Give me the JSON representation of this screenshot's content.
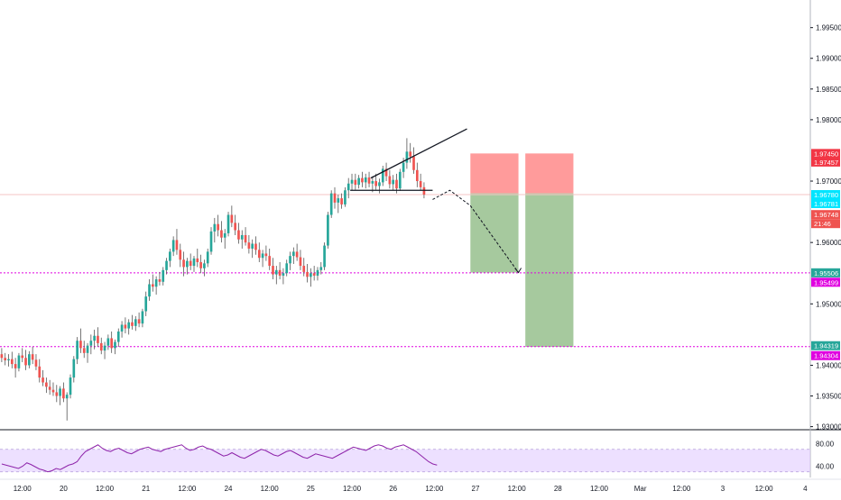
{
  "chart_data": [
    {
      "type": "candlestick",
      "title": "",
      "ylim": [
        1.9295,
        1.9995
      ],
      "y_ticks": [
        "1.99500",
        "1.99000",
        "1.98500",
        "1.98000",
        "1.97000",
        "1.96000",
        "1.95000",
        "1.94000",
        "1.93500",
        "1.93000"
      ],
      "y_tick_values": [
        1.995,
        1.99,
        1.985,
        1.98,
        1.97,
        1.96,
        1.95,
        1.94,
        1.935,
        1.93
      ],
      "x_ticks": [
        "12:00",
        "20",
        "12:00",
        "21",
        "12:00",
        "24",
        "12:00",
        "25",
        "12:00",
        "26",
        "12:00",
        "27",
        "12:00",
        "28",
        "12:00",
        "Mar",
        "12:00",
        "3",
        "12:00",
        "4"
      ],
      "x_tick_indices": [
        6,
        18,
        30,
        42,
        54,
        66,
        78,
        90,
        102,
        114,
        126,
        138,
        150,
        162,
        174,
        186,
        198,
        210,
        222,
        234
      ],
      "bar_count_visible": 236,
      "ohlc": [
        [
          1.9418,
          1.9428,
          1.9405,
          1.9412
        ],
        [
          1.9412,
          1.942,
          1.94,
          1.9408
        ],
        [
          1.9408,
          1.9418,
          1.9398,
          1.941
        ],
        [
          1.941,
          1.9422,
          1.9395,
          1.9402
        ],
        [
          1.9402,
          1.9412,
          1.938,
          1.9395
        ],
        [
          1.9395,
          1.942,
          1.939,
          1.9416
        ],
        [
          1.9416,
          1.9428,
          1.9405,
          1.9412
        ],
        [
          1.9412,
          1.9425,
          1.9392,
          1.94
        ],
        [
          1.94,
          1.9423,
          1.9395,
          1.9418
        ],
        [
          1.9418,
          1.943,
          1.9402,
          1.9409
        ],
        [
          1.9409,
          1.9418,
          1.9392,
          1.9398
        ],
        [
          1.9398,
          1.941,
          1.9372,
          1.938
        ],
        [
          1.938,
          1.9392,
          1.9366,
          1.9372
        ],
        [
          1.9372,
          1.938,
          1.9355,
          1.9365
        ],
        [
          1.9365,
          1.9376,
          1.9352,
          1.936
        ],
        [
          1.936,
          1.9372,
          1.935,
          1.9356
        ],
        [
          1.9356,
          1.9368,
          1.934,
          1.935
        ],
        [
          1.935,
          1.9366,
          1.9335,
          1.9362
        ],
        [
          1.9362,
          1.9372,
          1.934,
          1.9346
        ],
        [
          1.9346,
          1.9356,
          1.931,
          1.9352
        ],
        [
          1.9352,
          1.9385,
          1.9346,
          1.938
        ],
        [
          1.938,
          1.9415,
          1.9372,
          1.941
        ],
        [
          1.941,
          1.9446,
          1.9402,
          1.944
        ],
        [
          1.944,
          1.946,
          1.942,
          1.9428
        ],
        [
          1.9428,
          1.944,
          1.9412,
          1.942
        ],
        [
          1.942,
          1.9436,
          1.9404,
          1.9432
        ],
        [
          1.9432,
          1.945,
          1.9418,
          1.944
        ],
        [
          1.944,
          1.9458,
          1.9426,
          1.9448
        ],
        [
          1.9448,
          1.9462,
          1.943,
          1.9436
        ],
        [
          1.9436,
          1.9445,
          1.9418,
          1.9424
        ],
        [
          1.9424,
          1.9438,
          1.941,
          1.9432
        ],
        [
          1.9432,
          1.945,
          1.9425,
          1.9444
        ],
        [
          1.9444,
          1.9455,
          1.942,
          1.9428
        ],
        [
          1.9428,
          1.9442,
          1.9418,
          1.9438
        ],
        [
          1.9438,
          1.946,
          1.943,
          1.9455
        ],
        [
          1.9455,
          1.9472,
          1.9445,
          1.9466
        ],
        [
          1.9466,
          1.9478,
          1.9452,
          1.946
        ],
        [
          1.946,
          1.9475,
          1.945,
          1.947
        ],
        [
          1.947,
          1.9482,
          1.9458,
          1.9464
        ],
        [
          1.9464,
          1.948,
          1.9456,
          1.9475
        ],
        [
          1.9475,
          1.9486,
          1.9462,
          1.9468
        ],
        [
          1.9468,
          1.9492,
          1.9462,
          1.9488
        ],
        [
          1.9488,
          1.952,
          1.948,
          1.9512
        ],
        [
          1.9512,
          1.954,
          1.9505,
          1.9532
        ],
        [
          1.9532,
          1.9548,
          1.952,
          1.9528
        ],
        [
          1.9528,
          1.9545,
          1.9515,
          1.954
        ],
        [
          1.954,
          1.9552,
          1.953,
          1.9536
        ],
        [
          1.9536,
          1.956,
          1.953,
          1.9555
        ],
        [
          1.9555,
          1.9575,
          1.9548,
          1.957
        ],
        [
          1.957,
          1.959,
          1.956,
          1.9585
        ],
        [
          1.9585,
          1.961,
          1.9578,
          1.9604
        ],
        [
          1.9604,
          1.9622,
          1.958,
          1.9588
        ],
        [
          1.9588,
          1.9598,
          1.956,
          1.9572
        ],
        [
          1.9572,
          1.9585,
          1.9545,
          1.956
        ],
        [
          1.956,
          1.9575,
          1.9548,
          1.957
        ],
        [
          1.957,
          1.9582,
          1.9555,
          1.9562
        ],
        [
          1.9562,
          1.9578,
          1.9552,
          1.9574
        ],
        [
          1.9574,
          1.959,
          1.956,
          1.9568
        ],
        [
          1.9568,
          1.958,
          1.955,
          1.9558
        ],
        [
          1.9558,
          1.9572,
          1.9545,
          1.9566
        ],
        [
          1.9566,
          1.959,
          1.956,
          1.9585
        ],
        [
          1.9585,
          1.9625,
          1.958,
          1.9618
        ],
        [
          1.9618,
          1.964,
          1.96,
          1.963
        ],
        [
          1.963,
          1.9645,
          1.961,
          1.962
        ],
        [
          1.962,
          1.9635,
          1.96,
          1.9608
        ],
        [
          1.9608,
          1.9622,
          1.959,
          1.9615
        ],
        [
          1.9615,
          1.965,
          1.961,
          1.9645
        ],
        [
          1.9645,
          1.966,
          1.9625,
          1.9632
        ],
        [
          1.9632,
          1.9645,
          1.9612,
          1.962
        ],
        [
          1.962,
          1.9632,
          1.9598,
          1.9605
        ],
        [
          1.9605,
          1.962,
          1.959,
          1.9612
        ],
        [
          1.9612,
          1.9625,
          1.9595,
          1.96
        ],
        [
          1.96,
          1.9612,
          1.9582,
          1.959
        ],
        [
          1.959,
          1.9605,
          1.9575,
          1.9598
        ],
        [
          1.9598,
          1.961,
          1.958,
          1.9588
        ],
        [
          1.9588,
          1.96,
          1.9568,
          1.9575
        ],
        [
          1.9575,
          1.9588,
          1.956,
          1.9582
        ],
        [
          1.9582,
          1.9595,
          1.957,
          1.9578
        ],
        [
          1.9578,
          1.959,
          1.9555,
          1.9562
        ],
        [
          1.9562,
          1.9575,
          1.954,
          1.9548
        ],
        [
          1.9548,
          1.9562,
          1.9532,
          1.9555
        ],
        [
          1.9555,
          1.9568,
          1.954,
          1.9546
        ],
        [
          1.9546,
          1.9558,
          1.9532,
          1.955
        ],
        [
          1.955,
          1.9572,
          1.9545,
          1.9566
        ],
        [
          1.9566,
          1.9585,
          1.9555,
          1.9578
        ],
        [
          1.9578,
          1.9592,
          1.9565,
          1.9585
        ],
        [
          1.9585,
          1.9598,
          1.957,
          1.9576
        ],
        [
          1.9576,
          1.9588,
          1.9555,
          1.9562
        ],
        [
          1.9562,
          1.9575,
          1.9545,
          1.9552
        ],
        [
          1.9552,
          1.9565,
          1.9535,
          1.9544
        ],
        [
          1.9544,
          1.9558,
          1.9528,
          1.955
        ],
        [
          1.955,
          1.9562,
          1.9538,
          1.9546
        ],
        [
          1.9546,
          1.956,
          1.9538,
          1.9555
        ],
        [
          1.9555,
          1.9568,
          1.9548,
          1.956
        ],
        [
          1.956,
          1.96,
          1.9555,
          1.9595
        ],
        [
          1.9595,
          1.965,
          1.959,
          1.9645
        ],
        [
          1.9645,
          1.9685,
          1.964,
          1.968
        ],
        [
          1.968,
          1.969,
          1.9655,
          1.9665
        ],
        [
          1.9665,
          1.9678,
          1.9648,
          1.9672
        ],
        [
          1.9672,
          1.968,
          1.9655,
          1.9662
        ],
        [
          1.9662,
          1.969,
          1.9658,
          1.9685
        ],
        [
          1.9685,
          1.9705,
          1.9672,
          1.9696
        ],
        [
          1.9696,
          1.9712,
          1.9685,
          1.9702
        ],
        [
          1.9702,
          1.9712,
          1.9686,
          1.9694
        ],
        [
          1.9694,
          1.971,
          1.9688,
          1.9705
        ],
        [
          1.9705,
          1.9715,
          1.969,
          1.9698
        ],
        [
          1.9698,
          1.9712,
          1.9688,
          1.9706
        ],
        [
          1.9706,
          1.9715,
          1.969,
          1.9696
        ],
        [
          1.9696,
          1.9708,
          1.9682,
          1.97
        ],
        [
          1.97,
          1.9712,
          1.9686,
          1.9692
        ],
        [
          1.9692,
          1.9704,
          1.968,
          1.9698
        ],
        [
          1.9698,
          1.9725,
          1.9692,
          1.972
        ],
        [
          1.972,
          1.973,
          1.97,
          1.9708
        ],
        [
          1.9708,
          1.9718,
          1.9688,
          1.9695
        ],
        [
          1.9695,
          1.971,
          1.9685,
          1.9702
        ],
        [
          1.9702,
          1.9712,
          1.968,
          1.9688
        ],
        [
          1.9688,
          1.972,
          1.9684,
          1.9715
        ],
        [
          1.9715,
          1.9738,
          1.9705,
          1.973
        ],
        [
          1.973,
          1.977,
          1.972,
          1.9748
        ],
        [
          1.9748,
          1.9762,
          1.973,
          1.974
        ],
        [
          1.974,
          1.9755,
          1.9712,
          1.9718
        ],
        [
          1.9718,
          1.973,
          1.969,
          1.97
        ],
        [
          1.97,
          1.9712,
          1.9685,
          1.969
        ],
        [
          1.969,
          1.9698,
          1.9672,
          1.9678
        ]
      ],
      "horizontal_lines": [
        {
          "price": 1.95506,
          "style": "dotted",
          "color": "#e000e0"
        },
        {
          "price": 1.94304,
          "style": "dotted",
          "color": "#e000e0"
        },
        {
          "price": 1.9678,
          "style": "solid",
          "color": "#f5c6c6"
        }
      ],
      "trendlines": [
        {
          "x": [
            108,
            136
          ],
          "y": [
            1.9705,
            1.9785
          ],
          "color": "#131722"
        },
        {
          "x": [
            102,
            126
          ],
          "y": [
            1.9685,
            1.9685
          ],
          "color": "#131722"
        }
      ],
      "projection_path": {
        "x": [
          126,
          131,
          137,
          151
        ],
        "y": [
          1.967,
          1.9685,
          1.966,
          1.9551
        ]
      },
      "positions": [
        {
          "x_range": [
            137,
            151
          ],
          "entry": 1.968,
          "stop": 1.9745,
          "target": 1.9551
        },
        {
          "x_range": [
            153,
            167
          ],
          "entry": 1.968,
          "stop": 1.9745,
          "target": 1.943
        }
      ],
      "price_tags": [
        {
          "text": "1.97450",
          "value": 1.9745,
          "bg": "#f23645"
        },
        {
          "text": "1.97457",
          "value": 1.97457,
          "bg": "#f23645"
        },
        {
          "text": "1.96780",
          "value": 1.9678,
          "bg": "#00e5ff"
        },
        {
          "text": "1.96781",
          "value": 1.96781,
          "bg": "#00e5ff"
        },
        {
          "text": "1.96748",
          "value": 1.96748,
          "bg": "#ef5350"
        },
        {
          "text": "21:46",
          "value": 1.96748,
          "bg": "#ef5350"
        },
        {
          "text": "1.95506",
          "value": 1.95506,
          "bg": "#26a69a"
        },
        {
          "text": "1.95499",
          "value": 1.95499,
          "bg": "#e000e0"
        },
        {
          "text": "1.94319",
          "value": 1.94319,
          "bg": "#26a69a"
        },
        {
          "text": "1.94304",
          "value": 1.94304,
          "bg": "#e000e0"
        }
      ],
      "colors": {
        "up": "#26a69a",
        "down": "#ef5350",
        "wick": "#555555",
        "loss_zone": "#ff8a8a",
        "profit_zone": "#9cc394"
      }
    },
    {
      "type": "line",
      "title": "",
      "ylim": [
        20,
        100
      ],
      "y_ticks": [
        "80.00",
        "40.00"
      ],
      "y_tick_values": [
        80,
        40
      ],
      "band": [
        30,
        70
      ],
      "series": [
        {
          "values": [
            44,
            42,
            40,
            38,
            36,
            40,
            46,
            43,
            39,
            35,
            33,
            30,
            32,
            36,
            34,
            38,
            42,
            44,
            48,
            58,
            66,
            70,
            74,
            78,
            72,
            68,
            66,
            70,
            72,
            68,
            64,
            62,
            66,
            70,
            72,
            74,
            70,
            68,
            66,
            70,
            72,
            74,
            76,
            78,
            72,
            68,
            70,
            74,
            76,
            72,
            70,
            66,
            62,
            58,
            60,
            64,
            60,
            56,
            54,
            58,
            62,
            66,
            70,
            68,
            64,
            60,
            58,
            62,
            66,
            68,
            64,
            60,
            56,
            54,
            58,
            62,
            60,
            58,
            56,
            54,
            58,
            62,
            66,
            70,
            74,
            72,
            70,
            68,
            72,
            76,
            78,
            76,
            72,
            70,
            74,
            76,
            78,
            74,
            70,
            66,
            60,
            54,
            48,
            44,
            42
          ]
        }
      ],
      "colors": {
        "line": "#8e24aa",
        "band": "#e1ccff"
      }
    }
  ]
}
